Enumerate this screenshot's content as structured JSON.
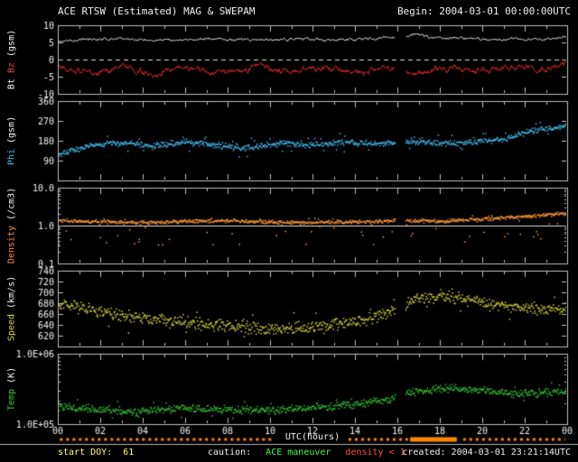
{
  "header": {
    "title": "ACE RTSW (Estimated) MAG & SWEPAM",
    "begin": "Begin: 2004-03-01 00:00:00UTC"
  },
  "footer": {
    "start_doy": "start DOY:  61",
    "caution": "caution:",
    "maneuver": "ACE maneuver",
    "density_caution": "density < 1",
    "created": "created: 2004-03-01 23:21:14UTC"
  },
  "colors": {
    "background": "#000000",
    "frame": "#c0c0c0",
    "text": "#f0f0f0",
    "ref_line": "#e0e0e0",
    "caution_marks": "#ff8800",
    "doy": "#ffff60",
    "maneuver": "#40ff40",
    "density_caution": "#ff5040",
    "separator": "#b8b8b8"
  },
  "axes": {
    "x": {
      "label": "UTC(hours)",
      "min": 0,
      "max": 24,
      "ticks": [
        {
          "h": 0,
          "t": "00"
        },
        {
          "h": 2,
          "t": "02"
        },
        {
          "h": 4,
          "t": "04"
        },
        {
          "h": 6,
          "t": "06"
        },
        {
          "h": 8,
          "t": "08"
        },
        {
          "h": 10,
          "t": "10"
        },
        {
          "h": 12,
          "t": "12"
        },
        {
          "h": 14,
          "t": "14"
        },
        {
          "h": 16,
          "t": "16"
        },
        {
          "h": 18,
          "t": "18"
        },
        {
          "h": 20,
          "t": "20"
        },
        {
          "h": 22,
          "t": "22"
        },
        {
          "h": 24,
          "t": "00"
        }
      ]
    }
  },
  "gaps": [
    [
      15.9,
      16.4
    ]
  ],
  "caution_segments": [
    {
      "from": 0.1,
      "to": 10.1,
      "style": "dashed"
    },
    {
      "from": 13.7,
      "to": 16.5,
      "style": "dashed"
    },
    {
      "from": 16.6,
      "to": 18.8,
      "style": "solid"
    },
    {
      "from": 19.1,
      "to": 23.9,
      "style": "dashed"
    }
  ],
  "chart_data": [
    {
      "type": "scatter",
      "name": "mag-bt-bz",
      "yscale": "linear",
      "ylim": [
        -10,
        10
      ],
      "yticks": [
        {
          "v": 10,
          "t": "10"
        },
        {
          "v": 5,
          "t": "5"
        },
        {
          "v": 0,
          "t": "0"
        },
        {
          "v": -5,
          "t": "-5"
        },
        {
          "v": -10,
          "t": "-10"
        }
      ],
      "ylabel_parts": [
        {
          "text": "Bt ",
          "color": "#f5f5f5"
        },
        {
          "text": "Bz ",
          "color": "#e84040"
        },
        {
          "text": "(gsm)",
          "color": "#f5f5f5"
        }
      ],
      "ref_lines": [
        {
          "v": 0,
          "style": "dashed"
        }
      ],
      "series": [
        {
          "name": "Bt",
          "color": "#f2f2f2",
          "draw": "line",
          "seed": 11,
          "noise": 0.5,
          "anchors": [
            [
              0,
              5.2
            ],
            [
              1,
              5.8
            ],
            [
              3,
              6.2
            ],
            [
              5,
              5.8
            ],
            [
              7,
              6.0
            ],
            [
              9,
              5.6
            ],
            [
              11,
              6.0
            ],
            [
              13,
              5.6
            ],
            [
              15,
              6.2
            ],
            [
              16.6,
              7.0
            ],
            [
              17,
              7.6
            ],
            [
              17.5,
              6.4
            ],
            [
              19,
              6.2
            ],
            [
              21,
              5.8
            ],
            [
              23,
              6.0
            ],
            [
              24,
              6.6
            ]
          ]
        },
        {
          "name": "Bz",
          "color": "#e02828",
          "draw": "line",
          "seed": 22,
          "noise": 1.1,
          "anchors": [
            [
              0,
              -1.5
            ],
            [
              1.5,
              -4.0
            ],
            [
              3,
              -2.0
            ],
            [
              4.5,
              -4.2
            ],
            [
              6,
              -2.5
            ],
            [
              8,
              -4.0
            ],
            [
              9.5,
              -2.0
            ],
            [
              11,
              -3.5
            ],
            [
              12.5,
              -2.2
            ],
            [
              14,
              -4.0
            ],
            [
              15.5,
              -2.5
            ],
            [
              17,
              -3.8
            ],
            [
              18.5,
              -2.5
            ],
            [
              20,
              -3.2
            ],
            [
              21.5,
              -2.0
            ],
            [
              23,
              -2.8
            ],
            [
              24,
              -1.8
            ]
          ]
        }
      ]
    },
    {
      "type": "scatter",
      "name": "phi",
      "yscale": "linear",
      "ylim": [
        0,
        360
      ],
      "yticks": [
        {
          "v": 360,
          "t": "360"
        },
        {
          "v": 270,
          "t": "270"
        },
        {
          "v": 180,
          "t": "180"
        },
        {
          "v": 90,
          "t": "90"
        },
        {
          "v": 0,
          "t": ""
        }
      ],
      "ylabel_parts": [
        {
          "text": "Phi ",
          "color": "#44b8e8"
        },
        {
          "text": "(gsm)",
          "color": "#f5f5f5"
        }
      ],
      "ref_lines": [],
      "series": [
        {
          "name": "Phi",
          "color": "#44b8e8",
          "draw": "dots",
          "seed": 33,
          "n": 850,
          "noise": 16,
          "wild_prob": 0.06,
          "wild_scale": 2.6,
          "anchors": [
            [
              0,
              115
            ],
            [
              0.7,
              135
            ],
            [
              1.5,
              160
            ],
            [
              3,
              170
            ],
            [
              4.5,
              155
            ],
            [
              6,
              175
            ],
            [
              7.5,
              160
            ],
            [
              9,
              145
            ],
            [
              10.5,
              170
            ],
            [
              12,
              160
            ],
            [
              13.5,
              175
            ],
            [
              15,
              165
            ],
            [
              16.5,
              180
            ],
            [
              18,
              165
            ],
            [
              19.5,
              175
            ],
            [
              21,
              185
            ],
            [
              22,
              215
            ],
            [
              23,
              235
            ],
            [
              24,
              250
            ]
          ]
        }
      ]
    },
    {
      "type": "scatter",
      "name": "density",
      "yscale": "log",
      "ylim": [
        0.1,
        10
      ],
      "yticks": [
        {
          "v": 10,
          "t": "10.0"
        },
        {
          "v": 1,
          "t": "1.0"
        },
        {
          "v": 0.1,
          "t": "0.1"
        }
      ],
      "ylabel_parts": [
        {
          "text": "Density ",
          "color": "#ff8a40"
        },
        {
          "text": "(/cm3)",
          "color": "#f5f5f5"
        }
      ],
      "ref_lines": [
        {
          "v": 1,
          "style": "solid"
        }
      ],
      "series": [
        {
          "name": "Density",
          "color": "#ff9838",
          "draw": "dots",
          "seed": 44,
          "n": 850,
          "noise": 0.055,
          "wild_prob": 0.05,
          "wild_scale": 2,
          "outlier_prob": 0.06,
          "outlier_mag": 0.5,
          "anchors": [
            [
              0,
              1.35
            ],
            [
              2,
              1.25
            ],
            [
              4,
              1.2
            ],
            [
              6,
              1.3
            ],
            [
              8,
              1.35
            ],
            [
              10,
              1.25
            ],
            [
              12,
              1.2
            ],
            [
              14,
              1.25
            ],
            [
              16,
              1.35
            ],
            [
              18,
              1.3
            ],
            [
              20,
              1.5
            ],
            [
              22,
              1.7
            ],
            [
              23.5,
              2.0
            ],
            [
              24,
              2.0
            ]
          ]
        }
      ]
    },
    {
      "type": "scatter",
      "name": "speed",
      "yscale": "linear",
      "ylim": [
        600,
        740
      ],
      "yticks": [
        {
          "v": 740,
          "t": "740"
        },
        {
          "v": 720,
          "t": "720"
        },
        {
          "v": 700,
          "t": "700"
        },
        {
          "v": 680,
          "t": "680"
        },
        {
          "v": 660,
          "t": "660"
        },
        {
          "v": 640,
          "t": "640"
        },
        {
          "v": 620,
          "t": "620"
        },
        {
          "v": 600,
          "t": ""
        }
      ],
      "ylabel_parts": [
        {
          "text": "Speed ",
          "color": "#d8d848"
        },
        {
          "text": "(km/s)",
          "color": "#f5f5f5"
        }
      ],
      "ref_lines": [],
      "series": [
        {
          "name": "Speed",
          "color": "#d0d040",
          "draw": "dots",
          "seed": 55,
          "n": 850,
          "noise": 13,
          "wild_prob": 0.05,
          "wild_scale": 1.8,
          "anchors": [
            [
              0,
              680
            ],
            [
              2,
              665
            ],
            [
              4,
              652
            ],
            [
              6,
              645
            ],
            [
              8,
              638
            ],
            [
              10,
              632
            ],
            [
              12,
              636
            ],
            [
              14,
              645
            ],
            [
              15.5,
              660
            ],
            [
              17,
              690
            ],
            [
              18.5,
              692
            ],
            [
              20,
              680
            ],
            [
              21.5,
              672
            ],
            [
              23,
              668
            ],
            [
              24,
              670
            ]
          ]
        }
      ]
    },
    {
      "type": "scatter",
      "name": "temp",
      "yscale": "log",
      "ylim": [
        100000,
        1000000
      ],
      "yticks": [
        {
          "v": 1000000,
          "t": "1.0E+06"
        },
        {
          "v": 100000,
          "t": "1.0E+05"
        }
      ],
      "ylabel_parts": [
        {
          "text": "Temp ",
          "color": "#38c838"
        },
        {
          "text": "(K)",
          "color": "#f5f5f5"
        }
      ],
      "ref_lines": [],
      "series": [
        {
          "name": "Temp",
          "color": "#34bc34",
          "draw": "dots",
          "seed": 66,
          "n": 850,
          "noise": 0.065,
          "wild_prob": 0.04,
          "wild_scale": 2,
          "anchors": [
            [
              0,
              180000
            ],
            [
              2,
              160000
            ],
            [
              4,
              150000
            ],
            [
              6,
              170000
            ],
            [
              8,
              160000
            ],
            [
              10,
              155000
            ],
            [
              12,
              170000
            ],
            [
              14,
              190000
            ],
            [
              15.5,
              220000
            ],
            [
              17,
              300000
            ],
            [
              18.5,
              330000
            ],
            [
              20,
              300000
            ],
            [
              21.5,
              270000
            ],
            [
              23,
              280000
            ],
            [
              24,
              290000
            ]
          ]
        }
      ]
    }
  ]
}
